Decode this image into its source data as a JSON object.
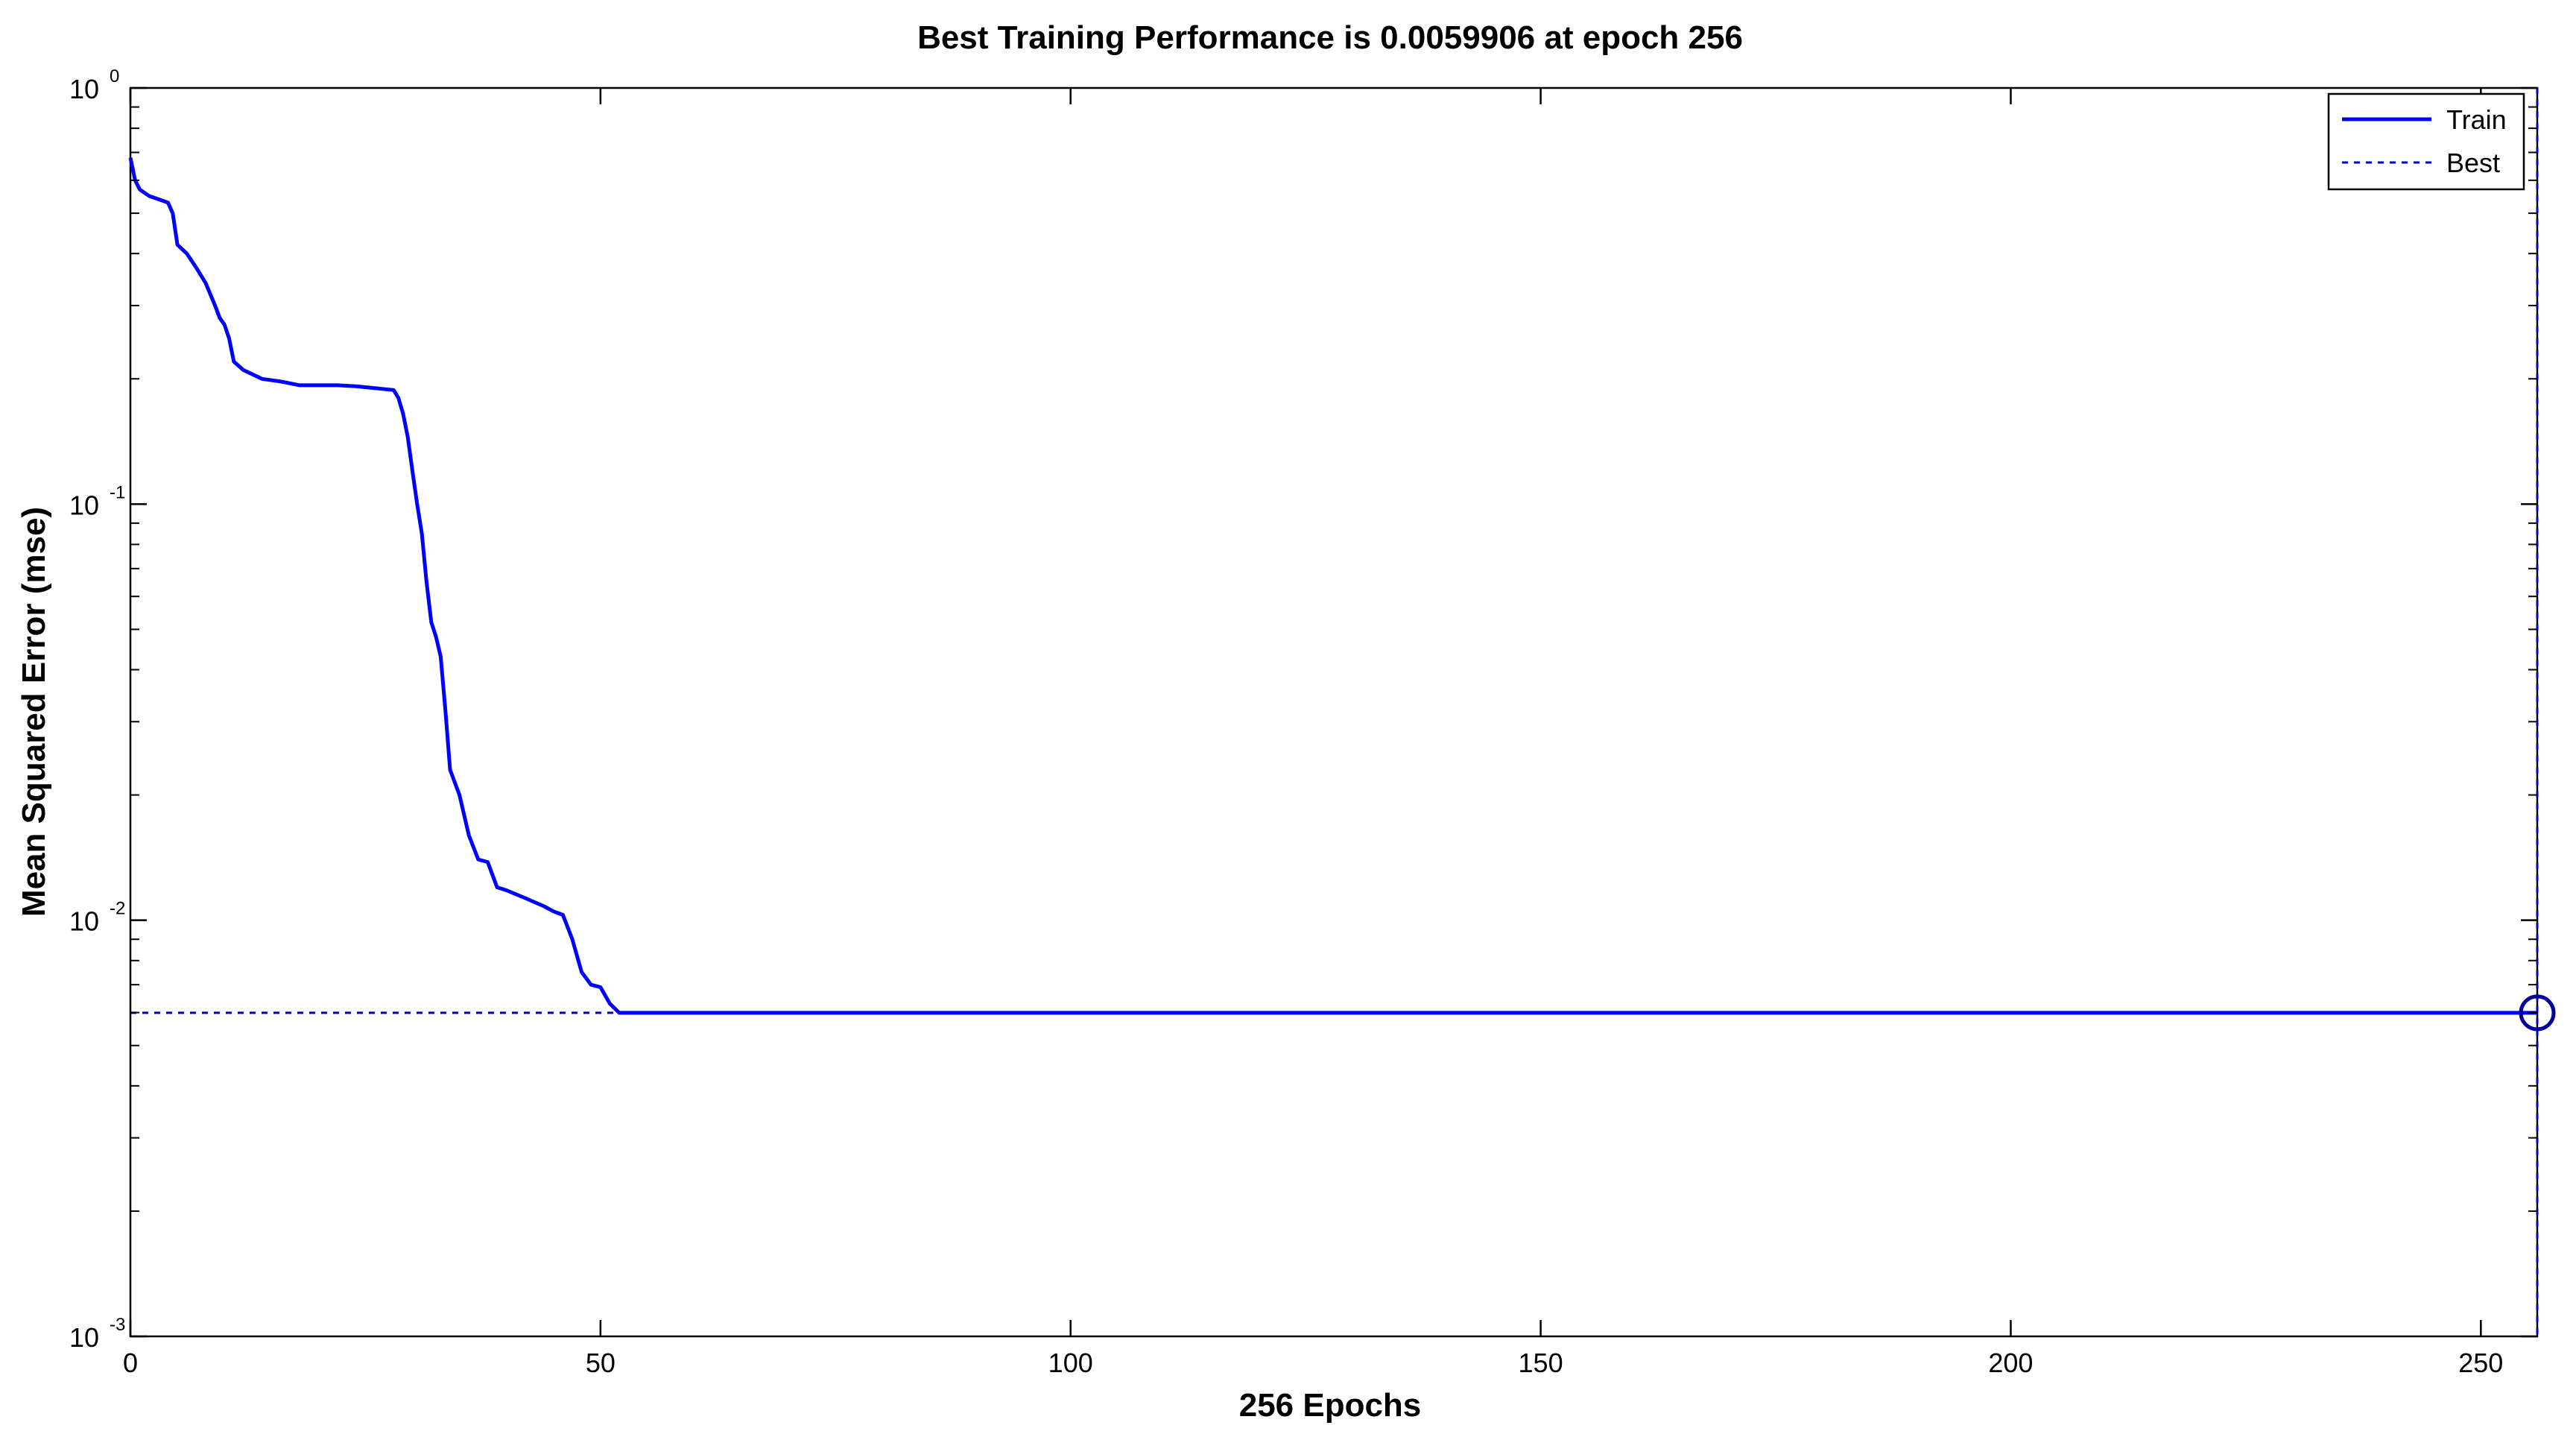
{
  "chart_data": {
    "type": "line",
    "title": "Best Training Performance is 0.0059906 at epoch 256",
    "xlabel": "256 Epochs",
    "ylabel": "Mean Squared Error  (mse)",
    "xlim": [
      0,
      256
    ],
    "ylim": [
      0.001,
      1
    ],
    "yscale": "log",
    "x_ticks": [
      {
        "value": 0,
        "label": "0"
      },
      {
        "value": 50,
        "label": "50"
      },
      {
        "value": 100,
        "label": "100"
      },
      {
        "value": 150,
        "label": "150"
      },
      {
        "value": 200,
        "label": "200"
      },
      {
        "value": 250,
        "label": "250"
      }
    ],
    "y_ticks": [
      {
        "value": 1,
        "base": "10",
        "exp": "0"
      },
      {
        "value": 0.1,
        "base": "10",
        "exp": "-1"
      },
      {
        "value": 0.01,
        "base": "10",
        "exp": "-2"
      },
      {
        "value": 0.001,
        "base": "10",
        "exp": "-3"
      }
    ],
    "grid": false,
    "legend_position": "top-right",
    "series": [
      {
        "name": "Train",
        "style": "solid",
        "color": "#0000ff",
        "x": [
          0,
          0.5,
          1,
          2,
          3,
          4,
          4.5,
          5,
          6,
          7,
          8,
          9,
          9.5,
          10,
          10.5,
          11,
          12,
          13,
          14,
          16,
          18,
          20,
          22,
          24,
          26,
          28,
          28.5,
          29,
          29.5,
          30,
          30.5,
          31,
          31.5,
          32,
          32.5,
          33,
          33.5,
          34,
          35,
          36,
          37,
          38,
          39,
          40,
          42,
          44,
          45,
          46,
          47,
          48,
          49,
          50,
          51,
          52,
          256
        ],
        "y": [
          0.68,
          0.6,
          0.57,
          0.55,
          0.54,
          0.53,
          0.5,
          0.42,
          0.4,
          0.37,
          0.34,
          0.3,
          0.28,
          0.27,
          0.25,
          0.22,
          0.21,
          0.205,
          0.2,
          0.197,
          0.193,
          0.193,
          0.193,
          0.192,
          0.19,
          0.188,
          0.18,
          0.165,
          0.145,
          0.12,
          0.1,
          0.085,
          0.065,
          0.052,
          0.048,
          0.043,
          0.032,
          0.023,
          0.02,
          0.016,
          0.014,
          0.0138,
          0.012,
          0.0118,
          0.0113,
          0.0108,
          0.0105,
          0.0103,
          0.009,
          0.0075,
          0.007,
          0.0069,
          0.0063,
          0.0059906,
          0.0059906
        ]
      },
      {
        "name": "Best",
        "style": "dotted",
        "color": "#0000cc",
        "hline": 0.0059906,
        "vline": 256
      }
    ],
    "best_point": {
      "x": 256,
      "y": 0.0059906
    }
  }
}
